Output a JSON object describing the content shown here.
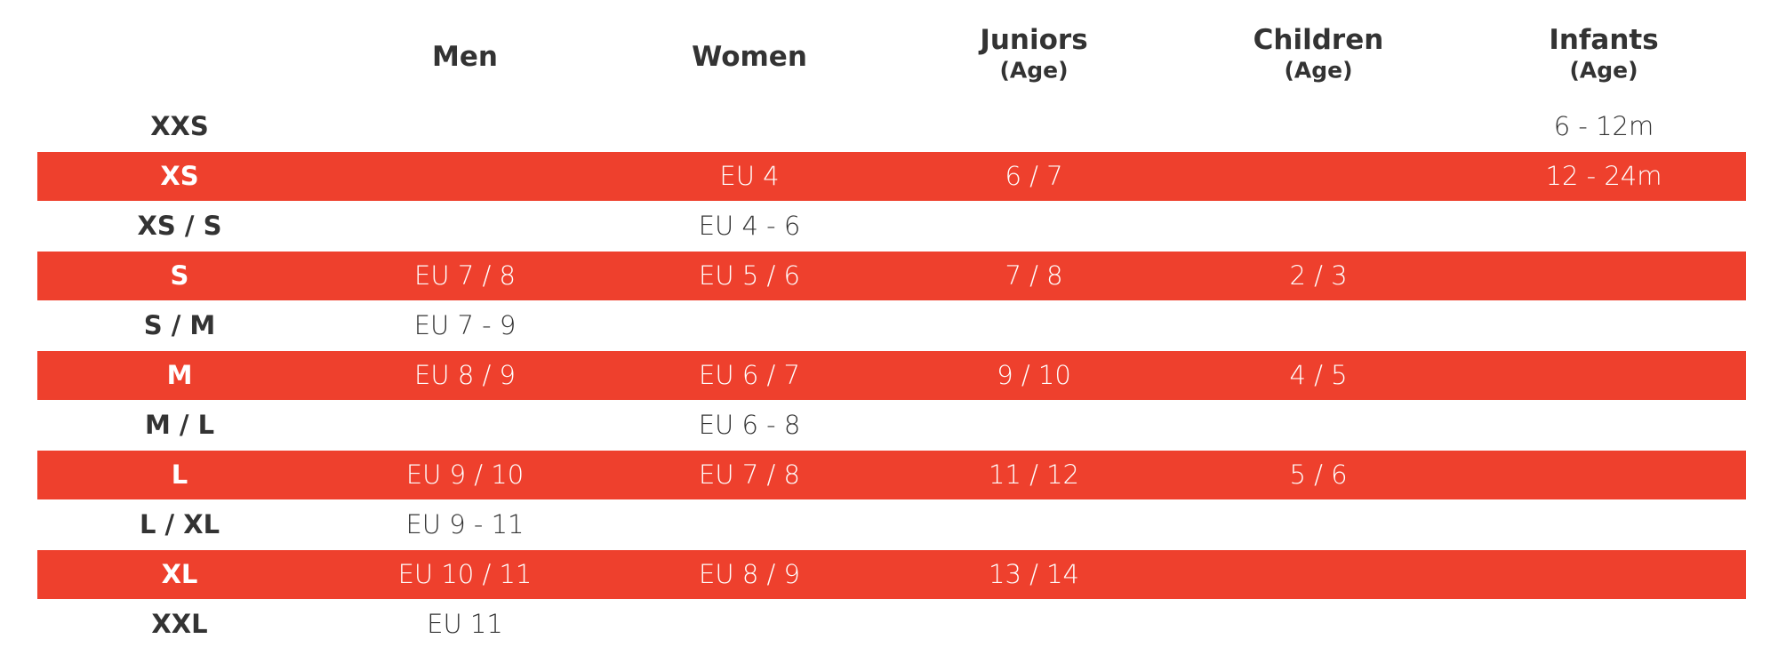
{
  "table": {
    "columns": [
      {
        "name": "Men"
      },
      {
        "name": "Women"
      },
      {
        "name": "Juniors",
        "sub": "(Age)"
      },
      {
        "name": "Children",
        "sub": "(Age)"
      },
      {
        "name": "Infants",
        "sub": "(Age)"
      }
    ],
    "rows": [
      {
        "size": "XXS",
        "cells": [
          null,
          null,
          null,
          null,
          "6 - 12m"
        ]
      },
      {
        "size": "XS",
        "cells": [
          null,
          "EU 4",
          "6 / 7",
          null,
          "12 - 24m"
        ]
      },
      {
        "size": "XS / S",
        "cells": [
          null,
          "EU 4 - 6",
          null,
          null,
          null
        ]
      },
      {
        "size": "S",
        "cells": [
          "EU 7 / 8",
          "EU 5 / 6",
          "7 / 8",
          "2 / 3",
          null
        ]
      },
      {
        "size": "S / M",
        "cells": [
          "EU 7 - 9",
          null,
          null,
          null,
          null
        ]
      },
      {
        "size": "M",
        "cells": [
          "EU 8 / 9",
          "EU 6 / 7",
          "9 / 10",
          "4 / 5",
          null
        ]
      },
      {
        "size": "M / L",
        "cells": [
          null,
          "EU 6 - 8",
          null,
          null,
          null
        ]
      },
      {
        "size": "L",
        "cells": [
          "EU 9 / 10",
          "EU 7 / 8",
          "11 / 12",
          "5 / 6",
          null
        ]
      },
      {
        "size": "L / XL",
        "cells": [
          "EU 9 - 11",
          null,
          null,
          null,
          null
        ]
      },
      {
        "size": "XL",
        "cells": [
          "EU 10 / 11",
          "EU 8 / 9",
          "13 / 14",
          null,
          null
        ]
      },
      {
        "size": "XXL",
        "cells": [
          "EU 11",
          null,
          null,
          null,
          null
        ]
      }
    ]
  }
}
